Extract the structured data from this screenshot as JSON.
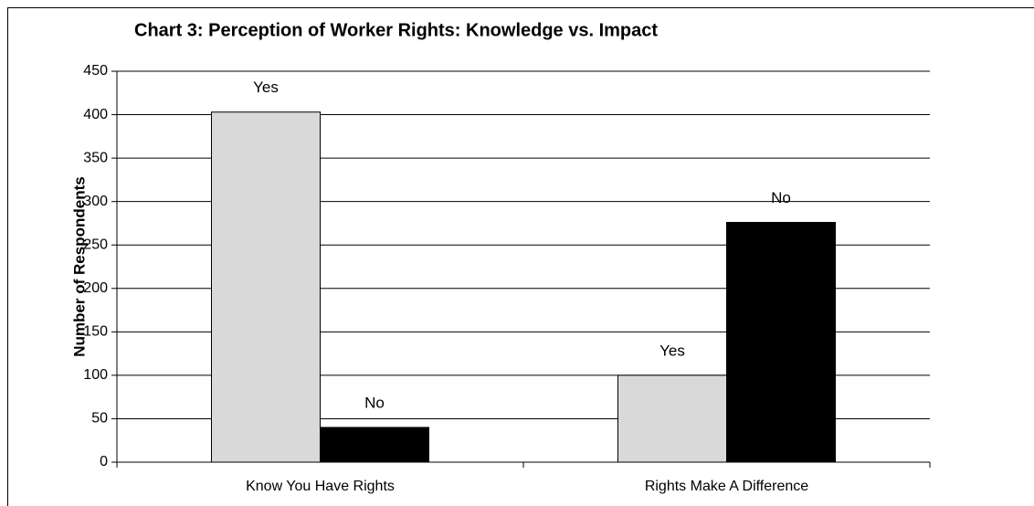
{
  "chart_data": {
    "type": "bar",
    "title": "Chart 3:  Perception of Worker Rights: Knowledge vs. Impact",
    "y_label": "Number of Respondents",
    "categories": [
      "Know  You Have Rights",
      "Rights Make A Difference"
    ],
    "series": [
      {
        "name": "Yes",
        "color": "#d9d9d9",
        "values": [
          403,
          100
        ]
      },
      {
        "name": "No",
        "color": "#000000",
        "values": [
          40,
          276
        ]
      }
    ],
    "ylim": [
      0,
      450
    ],
    "yticks": [
      0,
      50,
      100,
      150,
      200,
      250,
      300,
      350,
      400,
      450
    ],
    "grid": true
  }
}
